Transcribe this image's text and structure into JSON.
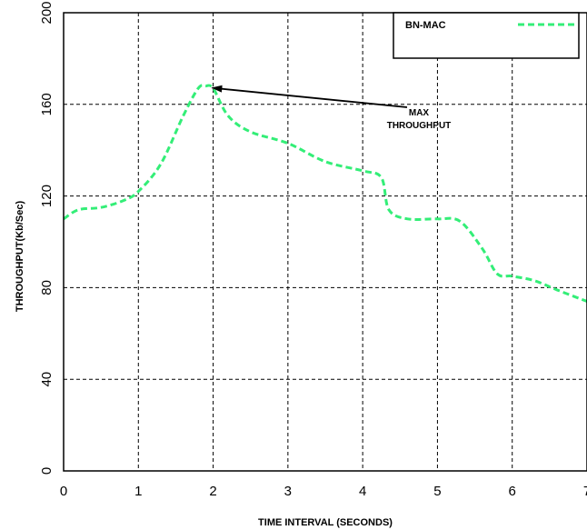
{
  "chart_data": {
    "type": "line",
    "xlabel": "TIME INTERVAL (SECONDS)",
    "ylabel": "THROUGHPUT(Kb/Sec)",
    "xlim": [
      0,
      7
    ],
    "ylim": [
      0,
      200
    ],
    "xticks": [
      0,
      1,
      2,
      3,
      4,
      5,
      6,
      7
    ],
    "yticks": [
      0,
      40,
      80,
      120,
      160,
      200
    ],
    "grid": true,
    "legend_position": "top-right",
    "series": [
      {
        "name": "BN-MAC",
        "color": "#33ee77",
        "style": "dashed",
        "x": [
          0,
          0.2,
          0.5,
          0.8,
          1.0,
          1.3,
          1.6,
          1.8,
          1.9,
          2.0,
          2.2,
          2.5,
          3.0,
          3.5,
          4.0,
          4.25,
          4.35,
          4.6,
          5.0,
          5.3,
          5.6,
          5.8,
          6.0,
          6.3,
          6.6,
          7.0
        ],
        "y": [
          110,
          114,
          115,
          118,
          122,
          134,
          155,
          167,
          168,
          167,
          155,
          148,
          143,
          135,
          131,
          128,
          114,
          110,
          110,
          109,
          97,
          86,
          85,
          83,
          79,
          74
        ]
      }
    ],
    "annotations": [
      {
        "text_lines": [
          "MAX",
          "THROUGHPUT"
        ],
        "points_to": {
          "x": 1.95,
          "y": 168
        }
      }
    ]
  }
}
